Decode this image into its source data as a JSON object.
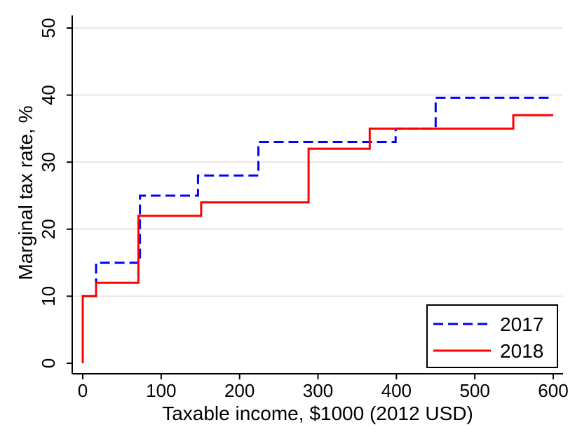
{
  "chart_data": {
    "type": "line",
    "step": true,
    "xlabel": "Taxable income, $1000 (2012 USD)",
    "ylabel": "Marginal tax rate, %",
    "xlim": [
      0,
      600
    ],
    "ylim": [
      0,
      50
    ],
    "xticks": [
      "0",
      "100",
      "200",
      "300",
      "400",
      "500",
      "600"
    ],
    "yticks": [
      "0",
      "10",
      "20",
      "30",
      "40",
      "50"
    ],
    "grid": "horizontal",
    "legend_position": "bottom-right",
    "series": [
      {
        "name": "2017",
        "color": "#0000ff",
        "style": "dashed",
        "x": [
          0,
          0,
          17,
          17,
          73,
          73,
          147,
          147,
          224,
          224,
          399,
          399,
          450,
          450,
          600
        ],
        "y": [
          0,
          10,
          10,
          15,
          15,
          25,
          25,
          28,
          28,
          33,
          33,
          35,
          35,
          39.6,
          39.6
        ]
      },
      {
        "name": "2018",
        "color": "#ff0000",
        "style": "solid",
        "x": [
          0,
          0,
          17,
          17,
          71,
          71,
          151,
          151,
          288,
          288,
          366,
          366,
          549,
          549,
          600
        ],
        "y": [
          0,
          10,
          10,
          12,
          12,
          22,
          22,
          24,
          24,
          32,
          32,
          35,
          35,
          37,
          37
        ]
      }
    ]
  }
}
